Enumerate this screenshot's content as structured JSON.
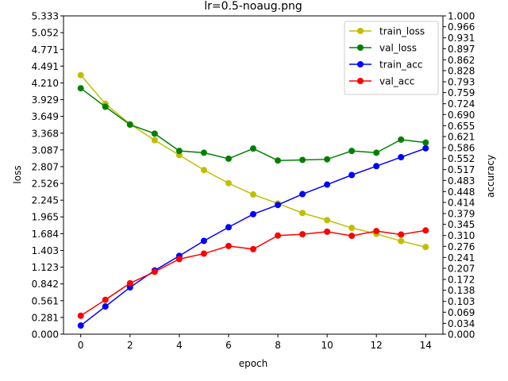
{
  "chart_data": {
    "type": "line",
    "title": "lr=0.5-noaug.png",
    "xlabel": "epoch",
    "ylabel_left": "loss",
    "ylabel_right": "accuracy",
    "x": [
      0,
      1,
      2,
      3,
      4,
      5,
      6,
      7,
      8,
      9,
      10,
      11,
      12,
      13,
      14
    ],
    "xlim": [
      -0.7,
      14.7
    ],
    "xticks": [
      0,
      2,
      4,
      6,
      8,
      10,
      12,
      14
    ],
    "xtick_labels": [
      "0",
      "2",
      "4",
      "6",
      "8",
      "10",
      "12",
      "14"
    ],
    "ylim_left": [
      0,
      5.333
    ],
    "ylim_right": [
      0,
      1.0
    ],
    "yticks_left": [
      "0.000",
      "0.281",
      "0.561",
      "0.842",
      "1.123",
      "1.403",
      "1.684",
      "1.965",
      "2.245",
      "2.526",
      "2.807",
      "3.087",
      "3.368",
      "3.649",
      "3.929",
      "4.210",
      "4.491",
      "4.771",
      "5.052",
      "5.333"
    ],
    "yticks_right": [
      "0.000",
      "0.034",
      "0.069",
      "0.103",
      "0.138",
      "0.172",
      "0.207",
      "0.241",
      "0.276",
      "0.310",
      "0.345",
      "0.379",
      "0.414",
      "0.448",
      "0.483",
      "0.517",
      "0.552",
      "0.586",
      "0.621",
      "0.655",
      "0.690",
      "0.724",
      "0.759",
      "0.793",
      "0.828",
      "0.862",
      "0.897",
      "0.931",
      "0.966",
      "1.000"
    ],
    "legend_position": "top-right",
    "series": [
      {
        "name": "train_loss",
        "axis": "left",
        "color": "#bfbf00",
        "values": [
          4.34,
          3.86,
          3.52,
          3.25,
          3.0,
          2.75,
          2.53,
          2.34,
          2.19,
          2.03,
          1.91,
          1.78,
          1.68,
          1.56,
          1.46
        ]
      },
      {
        "name": "val_loss",
        "axis": "left",
        "color": "#008000",
        "values": [
          4.12,
          3.81,
          3.51,
          3.36,
          3.07,
          3.04,
          2.94,
          3.11,
          2.91,
          2.92,
          2.93,
          3.07,
          3.04,
          3.26,
          3.21
        ]
      },
      {
        "name": "train_acc",
        "axis": "right",
        "color": "#0000ff",
        "values": [
          0.027,
          0.087,
          0.147,
          0.2,
          0.246,
          0.293,
          0.336,
          0.377,
          0.406,
          0.44,
          0.47,
          0.5,
          0.528,
          0.556,
          0.584
        ]
      },
      {
        "name": "val_acc",
        "axis": "right",
        "color": "#ff0000",
        "values": [
          0.058,
          0.108,
          0.16,
          0.196,
          0.236,
          0.253,
          0.277,
          0.267,
          0.31,
          0.314,
          0.322,
          0.309,
          0.324,
          0.313,
          0.326
        ]
      }
    ]
  }
}
